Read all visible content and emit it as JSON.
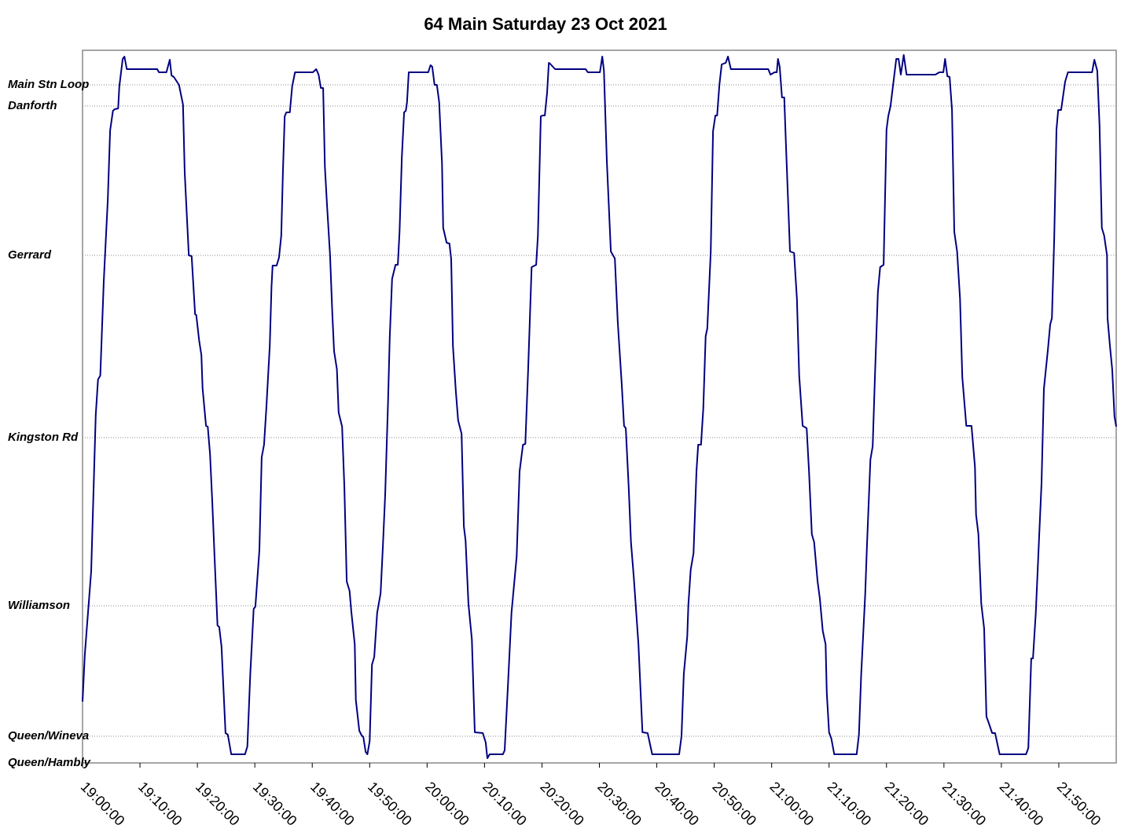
{
  "chart_data": {
    "type": "line",
    "title": "64 Main Saturday 23 Oct 2021",
    "x": [
      0.0,
      0.4,
      1.5,
      2.3,
      2.7,
      3.1,
      3.7,
      4.4,
      4.8,
      5.3,
      5.6,
      6.2,
      6.4,
      7.0,
      7.3,
      7.7,
      13.0,
      13.3,
      14.6,
      15.2,
      15.5,
      15.9,
      16.8,
      17.5,
      17.8,
      18.5,
      19.0,
      19.6,
      19.8,
      20.3,
      20.7,
      20.9,
      21.5,
      21.8,
      22.2,
      22.6,
      23.0,
      23.5,
      23.8,
      24.2,
      24.9,
      25.3,
      25.9,
      28.3,
      28.7,
      29.2,
      29.8,
      30.1,
      30.8,
      31.2,
      31.6,
      32.0,
      32.6,
      32.9,
      33.1,
      33.8,
      34.2,
      34.6,
      34.9,
      35.2,
      35.5,
      36.1,
      36.5,
      37.0,
      40.1,
      40.7,
      41.1,
      41.5,
      41.9,
      42.2,
      42.6,
      43.1,
      43.5,
      43.8,
      44.3,
      44.6,
      45.2,
      45.6,
      46.0,
      46.5,
      46.8,
      47.4,
      47.6,
      48.2,
      48.6,
      48.9,
      49.3,
      49.6,
      50.0,
      50.4,
      50.8,
      51.3,
      51.9,
      52.3,
      52.7,
      53.2,
      53.5,
      53.9,
      54.5,
      54.9,
      55.2,
      55.6,
      56.0,
      56.3,
      56.5,
      56.8,
      60.2,
      60.6,
      60.9,
      61.3,
      61.7,
      62.1,
      62.6,
      62.8,
      63.4,
      63.9,
      64.2,
      64.5,
      65.0,
      65.4,
      66.0,
      66.4,
      66.7,
      67.2,
      67.8,
      68.3,
      69.7,
      70.2,
      70.5,
      70.9,
      73.2,
      73.5,
      74.1,
      74.7,
      75.6,
      76.1,
      76.7,
      77.1,
      77.6,
      78.2,
      79.0,
      79.3,
      79.8,
      80.1,
      80.5,
      80.9,
      81.2,
      81.4,
      82.3,
      87.6,
      88.0,
      90.1,
      90.5,
      90.8,
      91.3,
      92.0,
      92.7,
      93.2,
      93.9,
      94.3,
      94.6,
      95.1,
      95.5,
      96.0,
      96.8,
      97.5,
      98.4,
      99.2,
      103.9,
      104.3,
      104.7,
      105.3,
      105.5,
      105.9,
      106.4,
      106.9,
      107.2,
      107.7,
      108.1,
      108.5,
      108.8,
      109.4,
      109.8,
      110.2,
      110.5,
      110.9,
      111.3,
      112.0,
      112.4,
      112.9,
      119.4,
      119.8,
      120.5,
      120.9,
      121.1,
      121.4,
      121.8,
      122.2,
      122.5,
      123.2,
      123.9,
      124.4,
      124.8,
      125.4,
      126.1,
      126.5,
      127.0,
      127.4,
      128.0,
      128.4,
      128.9,
      129.4,
      129.6,
      130.0,
      130.4,
      130.9,
      134.8,
      135.2,
      135.6,
      136.3,
      136.6,
      137.2,
      137.6,
      138.0,
      138.5,
      138.9,
      139.5,
      140.0,
      140.3,
      140.7,
      141.7,
      142.1,
      142.5,
      143.0,
      143.5,
      148.5,
      149.2,
      149.9,
      150.2,
      150.6,
      151.0,
      151.4,
      151.8,
      152.3,
      152.8,
      153.2,
      153.9,
      154.8,
      155.4,
      155.6,
      156.0,
      156.5,
      157.0,
      157.4,
      157.8,
      158.4,
      158.9,
      159.7,
      164.3,
      164.7,
      165.2,
      165.5,
      166.0,
      166.6,
      167.0,
      167.4,
      168.1,
      168.5,
      168.8,
      169.2,
      169.6,
      169.9,
      170.4,
      171.1,
      171.6,
      175.8,
      176.2,
      176.7,
      177.1,
      177.5,
      177.9,
      178.4,
      178.5,
      178.9,
      179.3,
      179.7,
      180.0
    ],
    "values": [
      78,
      138,
      244,
      443,
      488,
      493,
      613,
      716,
      805,
      830,
      832,
      833,
      861,
      896,
      899,
      883,
      883,
      879,
      879,
      895,
      875,
      873,
      863,
      838,
      751,
      646,
      645,
      571,
      570,
      538,
      519,
      477,
      429,
      428,
      393,
      331,
      261,
      175,
      173,
      148,
      38,
      36,
      11,
      11,
      21,
      111,
      196,
      199,
      271,
      389,
      405,
      451,
      531,
      606,
      633,
      633,
      643,
      671,
      755,
      823,
      828,
      828,
      861,
      879,
      879,
      883,
      876,
      859,
      859,
      759,
      707,
      646,
      571,
      524,
      501,
      446,
      428,
      351,
      231,
      219,
      193,
      151,
      80,
      41,
      35,
      33,
      14,
      11,
      28,
      125,
      135,
      191,
      216,
      276,
      341,
      461,
      541,
      616,
      634,
      634,
      676,
      771,
      828,
      830,
      841,
      879,
      879,
      888,
      886,
      863,
      863,
      841,
      763,
      681,
      662,
      661,
      641,
      531,
      473,
      436,
      419,
      301,
      283,
      203,
      157,
      39,
      38,
      26,
      6,
      11,
      11,
      16,
      101,
      191,
      263,
      371,
      405,
      406,
      501,
      631,
      634,
      671,
      823,
      824,
      824,
      853,
      891,
      890,
      883,
      883,
      879,
      879,
      899,
      881,
      766,
      651,
      642,
      561,
      481,
      429,
      426,
      351,
      281,
      236,
      151,
      39,
      38,
      11,
      11,
      34,
      113,
      161,
      201,
      246,
      267,
      371,
      405,
      405,
      451,
      543,
      553,
      651,
      804,
      824,
      824,
      863,
      889,
      891,
      899,
      883,
      883,
      876,
      879,
      879,
      896,
      886,
      847,
      847,
      786,
      651,
      649,
      591,
      493,
      429,
      426,
      371,
      291,
      281,
      231,
      209,
      168,
      151,
      89,
      39,
      31,
      11,
      11,
      36,
      113,
      215,
      276,
      386,
      403,
      496,
      599,
      631,
      634,
      806,
      823,
      836,
      896,
      896,
      876,
      901,
      876,
      876,
      879,
      879,
      896,
      874,
      873,
      831,
      676,
      651,
      591,
      491,
      429,
      429,
      377,
      316,
      291,
      203,
      171,
      59,
      51,
      38,
      38,
      11,
      11,
      19,
      133,
      133,
      191,
      291,
      356,
      476,
      526,
      558,
      566,
      666,
      806,
      831,
      831,
      867,
      879,
      879,
      895,
      881,
      811,
      681,
      671,
      646,
      566,
      531,
      501,
      441,
      428
    ],
    "color": "#000080",
    "xlim": [
      0,
      180
    ],
    "xticks": [
      {
        "value": 0,
        "label": "19:00:00"
      },
      {
        "value": 10,
        "label": "19:10:00"
      },
      {
        "value": 20,
        "label": "19:20:00"
      },
      {
        "value": 30,
        "label": "19:30:00"
      },
      {
        "value": 40,
        "label": "19:40:00"
      },
      {
        "value": 50,
        "label": "19:50:00"
      },
      {
        "value": 60,
        "label": "20:00:00"
      },
      {
        "value": 70,
        "label": "20:10:00"
      },
      {
        "value": 80,
        "label": "20:20:00"
      },
      {
        "value": 90,
        "label": "20:30:00"
      },
      {
        "value": 100,
        "label": "20:40:00"
      },
      {
        "value": 110,
        "label": "20:50:00"
      },
      {
        "value": 120,
        "label": "21:00:00"
      },
      {
        "value": 130,
        "label": "21:10:00"
      },
      {
        "value": 140,
        "label": "21:20:00"
      },
      {
        "value": 150,
        "label": "21:30:00"
      },
      {
        "value": 160,
        "label": "21:40:00"
      },
      {
        "value": 170,
        "label": "21:50:00"
      }
    ],
    "ylim": [
      0,
      907
    ],
    "yticks": [
      {
        "value": 0,
        "label": "Queen/Hambly"
      },
      {
        "value": 34,
        "label": "Queen/Wineva"
      },
      {
        "value": 200,
        "label": "Williamson"
      },
      {
        "value": 414,
        "label": "Kingston Rd"
      },
      {
        "value": 646,
        "label": "Gerrard"
      },
      {
        "value": 836,
        "label": "Danforth"
      },
      {
        "value": 863,
        "label": "Main Stn Loop"
      }
    ],
    "grid": true
  }
}
